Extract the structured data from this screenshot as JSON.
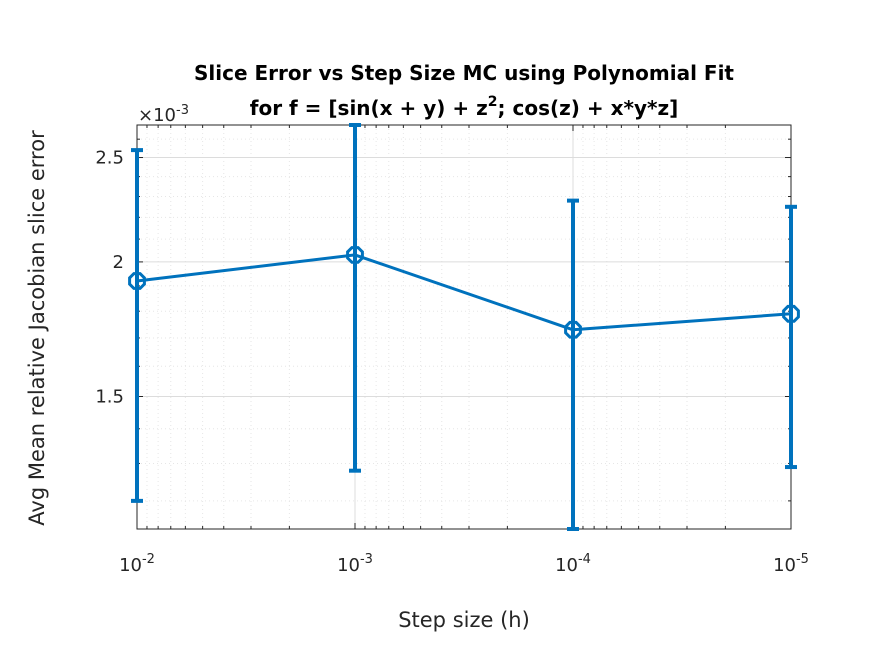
{
  "chart_data": {
    "type": "line",
    "title_line1": "Slice Error vs Step Size MC using Polynomial Fit",
    "title_line2_prefix": "for f = [sin(x + y) + z",
    "title_line2_sup": "2",
    "title_line2_suffix": "; cos(z) + x*y*z]",
    "xlabel": "Step size (h)",
    "ylabel": "Avg Mean relative Jacobian slice error",
    "y_exponent_base": "×10",
    "y_exponent_power": "-3",
    "x_scale": "log",
    "x_direction": "reversed",
    "grid": true,
    "y_scale": "log",
    "ylim": [
      1.13,
      2.68
    ],
    "xlim": [
      0.01,
      1e-05
    ],
    "x_ticks": [
      {
        "value": 0.01,
        "base": "10",
        "exp": "-2"
      },
      {
        "value": 0.001,
        "base": "10",
        "exp": "-3"
      },
      {
        "value": 0.0001,
        "base": "10",
        "exp": "-4"
      },
      {
        "value": 1e-05,
        "base": "10",
        "exp": "-5"
      }
    ],
    "y_ticks": [
      {
        "value": 1.5,
        "label": "1.5"
      },
      {
        "value": 2.0,
        "label": "2"
      },
      {
        "value": 2.5,
        "label": "2.5"
      }
    ],
    "series": [
      {
        "x": [
          0.01,
          0.001,
          0.0001,
          1e-05
        ],
        "y": [
          1.92,
          2.03,
          1.73,
          1.79
        ],
        "err_low": [
          1.2,
          1.28,
          1.13,
          1.29
        ],
        "err_high": [
          2.54,
          2.68,
          2.28,
          2.25
        ],
        "color": "#0072BD",
        "marker": "octagon"
      }
    ]
  }
}
